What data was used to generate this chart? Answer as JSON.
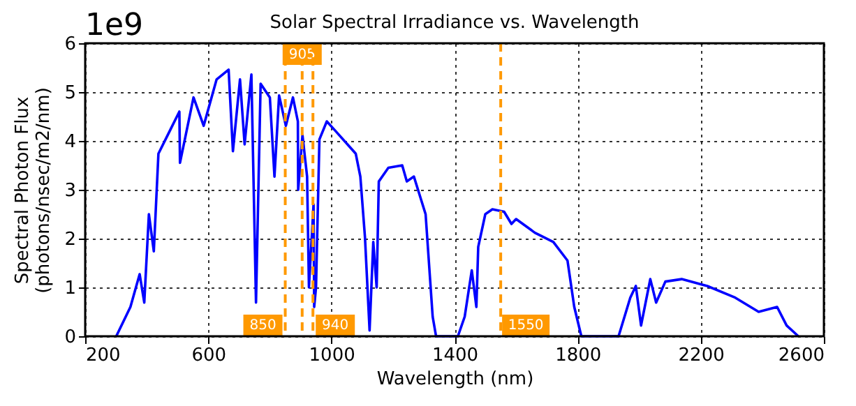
{
  "chart_data": {
    "type": "line",
    "title": "Solar Spectral Irradiance vs. Wavelength",
    "xlabel": "Wavelength (nm)",
    "ylabel": "Spectral Photon Flux\n(photons/nsec/m2/nm)",
    "annotations": [
      "1e9"
    ],
    "xlim": [
      200,
      2600
    ],
    "xticks": [
      200,
      600,
      1000,
      1400,
      1800,
      2200,
      2600
    ],
    "ylim": [
      0,
      6
    ],
    "yticks": [
      0,
      1,
      2,
      3,
      4,
      5,
      6
    ],
    "grid": true,
    "marker": "none",
    "line_style": "solid",
    "series": [
      {
        "color": "#0000ff",
        "x": [
          301,
          347,
          377,
          392,
          407,
          423,
          438,
          476,
          506,
          508,
          552,
          585,
          627,
          666,
          680,
          703,
          718,
          740,
          755,
          770,
          800,
          815,
          830,
          852,
          875,
          891,
          892,
          906,
          921,
          927,
          942,
          944,
          950,
          961,
          985,
          1011,
          1079,
          1094,
          1109,
          1124,
          1136,
          1147,
          1154,
          1185,
          1230,
          1245,
          1268,
          1306,
          1329,
          1340,
          1411,
          1433,
          1456,
          1471,
          1477,
          1500,
          1523,
          1561,
          1585,
          1600,
          1661,
          1721,
          1767,
          1789,
          1812,
          1933,
          1971,
          1989,
          2006,
          2036,
          2055,
          2085,
          2138,
          2221,
          2312,
          2388,
          2448,
          2479,
          2517
        ],
        "values": [
          0,
          0.6,
          1.27,
          0.69,
          2.5,
          1.74,
          3.74,
          4.22,
          4.6,
          3.55,
          4.89,
          4.31,
          5.26,
          5.46,
          3.79,
          5.26,
          3.93,
          5.36,
          0.69,
          5.17,
          4.89,
          3.27,
          4.93,
          4.31,
          4.89,
          4.4,
          3.0,
          4.12,
          3.27,
          1.0,
          2.7,
          0.6,
          1.0,
          4.03,
          4.4,
          4.22,
          3.74,
          3.27,
          2.03,
          0.12,
          1.93,
          1.0,
          3.17,
          3.45,
          3.5,
          3.17,
          3.27,
          2.5,
          0.4,
          0,
          0,
          0.4,
          1.35,
          0.6,
          1.83,
          2.5,
          2.6,
          2.55,
          2.3,
          2.4,
          2.12,
          1.93,
          1.55,
          0.6,
          0,
          0,
          0.79,
          1.03,
          0.22,
          1.17,
          0.69,
          1.12,
          1.17,
          1.03,
          0.79,
          0.5,
          0.6,
          0.22,
          0
        ]
      }
    ],
    "ref_lines": [
      {
        "axis": "x",
        "value": 850,
        "label": "850",
        "color": "#ff9900",
        "line_style": "dashed"
      },
      {
        "axis": "x",
        "value": 905,
        "label": "905",
        "color": "#ff9900",
        "line_style": "dashed"
      },
      {
        "axis": "x",
        "value": 940,
        "label": "940",
        "color": "#ff9900",
        "line_style": "dashed"
      },
      {
        "axis": "x",
        "value": 1550,
        "label": "1550",
        "color": "#ff9900",
        "line_style": "dashed"
      }
    ]
  }
}
